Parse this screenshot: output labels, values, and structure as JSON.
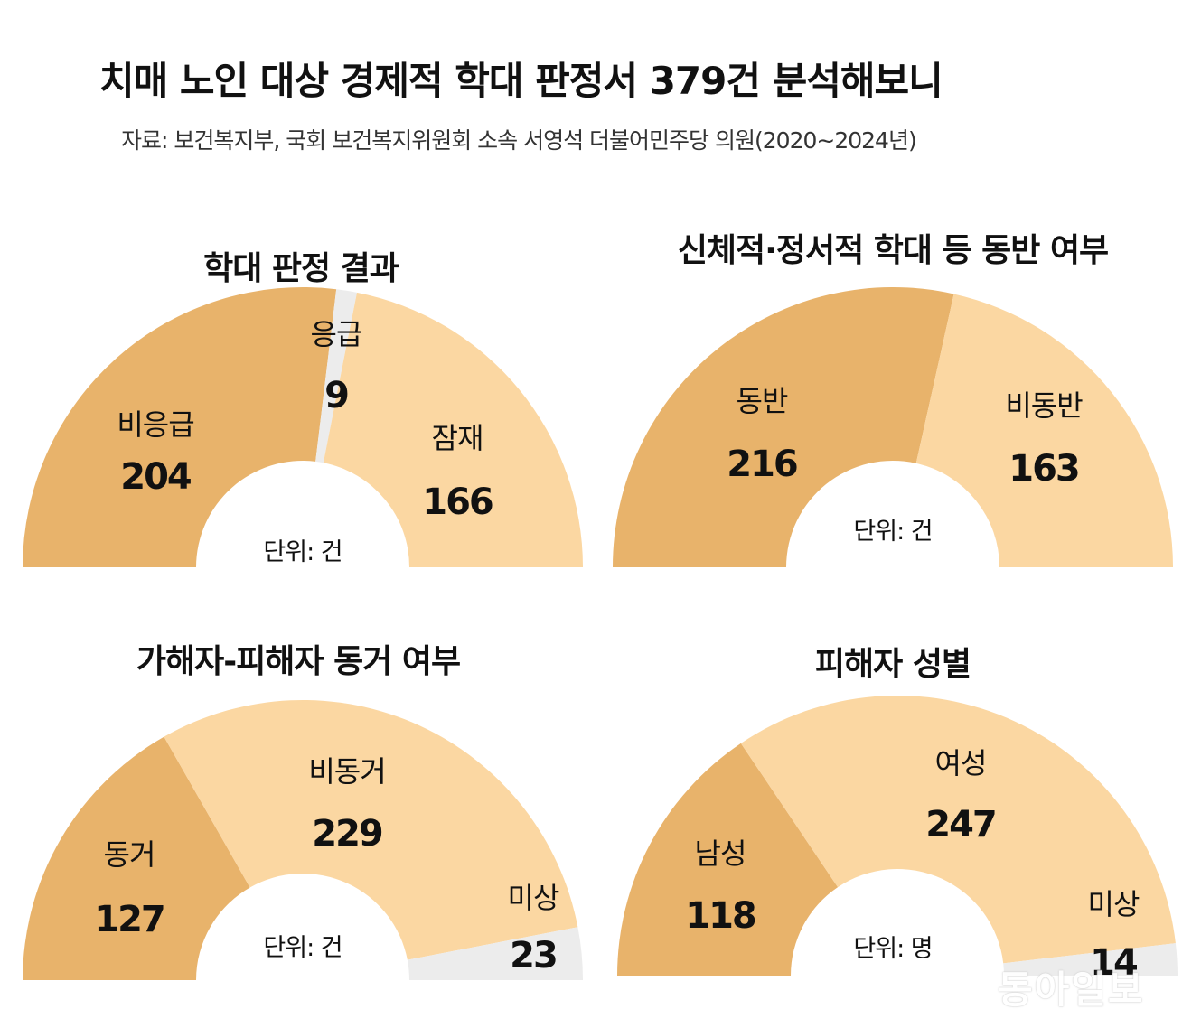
{
  "title": "치매 노인 대상 경제적 학대 판정서 379건 분석해보니",
  "source": "자료: 보건복지부, 국회 보건복지위원회 소속 서영석 더불어민주당 의원(2020∼2024년)",
  "watermark": "동아일보",
  "colors": {
    "dark": "#E8B36B",
    "light": "#FBD7A2",
    "gray": "#ECECEC"
  },
  "chart_data": [
    {
      "type": "pie",
      "title": "학대 판정 결과",
      "unit_label": "단위: 건",
      "series": [
        {
          "name": "비응급",
          "value": 204,
          "color": "#E8B36B"
        },
        {
          "name": "응급",
          "value": 9,
          "color": "#ECECEC"
        },
        {
          "name": "잠재",
          "value": 166,
          "color": "#FBD7A2"
        }
      ]
    },
    {
      "type": "pie",
      "title": "신체적·정서적 학대 등 동반 여부",
      "unit_label": "단위: 건",
      "series": [
        {
          "name": "동반",
          "value": 216,
          "color": "#E8B36B"
        },
        {
          "name": "비동반",
          "value": 163,
          "color": "#FBD7A2"
        }
      ]
    },
    {
      "type": "pie",
      "title": "가해자-피해자 동거 여부",
      "unit_label": "단위: 건",
      "series": [
        {
          "name": "동거",
          "value": 127,
          "color": "#E8B36B"
        },
        {
          "name": "비동거",
          "value": 229,
          "color": "#FBD7A2"
        },
        {
          "name": "미상",
          "value": 23,
          "color": "#ECECEC"
        }
      ]
    },
    {
      "type": "pie",
      "title": "피해자 성별",
      "unit_label": "단위: 명",
      "series": [
        {
          "name": "남성",
          "value": 118,
          "color": "#E8B36B"
        },
        {
          "name": "여성",
          "value": 247,
          "color": "#FBD7A2"
        },
        {
          "name": "미상",
          "value": 14,
          "color": "#ECECEC"
        }
      ]
    }
  ]
}
